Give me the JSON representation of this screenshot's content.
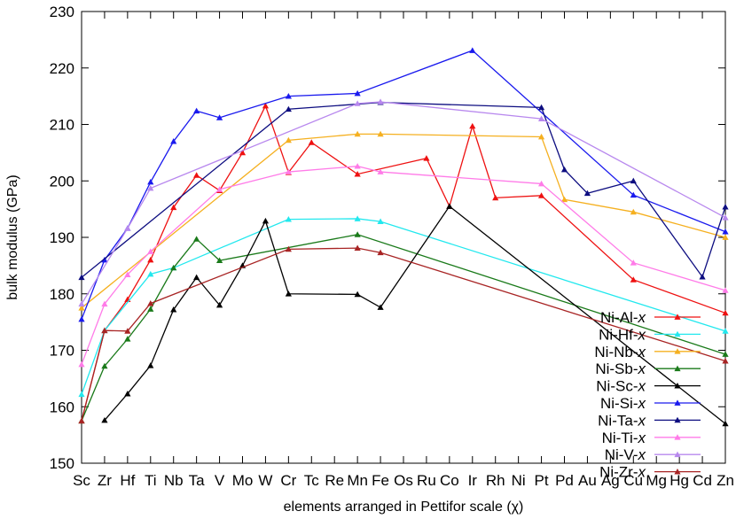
{
  "chart_data": {
    "type": "line",
    "xlabel": "elements arranged in Pettifor scale (χ)",
    "ylabel": "bulk modulus (GPa)",
    "ylim": [
      150,
      230
    ],
    "yticks": [
      150,
      160,
      170,
      180,
      190,
      200,
      210,
      220,
      230
    ],
    "categories": [
      "Sc",
      "Zr",
      "Hf",
      "Ti",
      "Nb",
      "Ta",
      "V",
      "Mo",
      "W",
      "Cr",
      "Tc",
      "Re",
      "Mn",
      "Fe",
      "Os",
      "Ru",
      "Co",
      "Ir",
      "Rh",
      "Ni",
      "Pt",
      "Pd",
      "Au",
      "Ag",
      "Cu",
      "Mg",
      "Hg",
      "Cd",
      "Zn"
    ],
    "legend_position": "center-right",
    "grid": false,
    "series": [
      {
        "name": "Ni-Al-x",
        "color": "#ee1111",
        "marker": "triangle",
        "points": [
          [
            "Sc",
            157.5
          ],
          [
            "Zr",
            173.5
          ],
          [
            "Hf",
            179.0
          ],
          [
            "Ti",
            186.0
          ],
          [
            "Nb",
            195.3
          ],
          [
            "Ta",
            201.0
          ],
          [
            "V",
            198.3
          ],
          [
            "Mo",
            205.0
          ],
          [
            "W",
            213.3
          ],
          [
            "Cr",
            201.5
          ],
          [
            "Tc",
            206.8
          ],
          [
            "Mn",
            201.2
          ],
          [
            "Ru",
            204.0
          ],
          [
            "Co",
            195.5
          ],
          [
            "Ir",
            209.7
          ],
          [
            "Rh",
            197.0
          ],
          [
            "Pt",
            197.4
          ],
          [
            "Cu",
            182.5
          ],
          [
            "Zn",
            176.6
          ]
        ]
      },
      {
        "name": "Ni-Hf-x",
        "color": "#22e8ee",
        "marker": "triangle",
        "points": [
          [
            "Sc",
            162.2
          ],
          [
            "Zr",
            173.5
          ],
          [
            "Ti",
            183.5
          ],
          [
            "Nb",
            184.6
          ],
          [
            "Cr",
            193.2
          ],
          [
            "Mn",
            193.3
          ],
          [
            "Fe",
            192.8
          ],
          [
            "Zn",
            173.4
          ]
        ]
      },
      {
        "name": "Ni-Nb-x",
        "color": "#f5b020",
        "marker": "triangle",
        "points": [
          [
            "Sc",
            177.5
          ],
          [
            "Cr",
            207.2
          ],
          [
            "Mn",
            208.3
          ],
          [
            "Fe",
            208.3
          ],
          [
            "Pt",
            207.8
          ],
          [
            "Pd",
            196.7
          ],
          [
            "Cu",
            194.5
          ],
          [
            "Zn",
            190.0
          ]
        ]
      },
      {
        "name": "Ni-Sb-x",
        "color": "#1a7a1a",
        "marker": "triangle",
        "points": [
          [
            "Sc",
            157.5
          ],
          [
            "Zr",
            167.2
          ],
          [
            "Hf",
            172.0
          ],
          [
            "Ti",
            177.3
          ],
          [
            "Nb",
            184.6
          ],
          [
            "Ta",
            189.7
          ],
          [
            "V",
            185.9
          ],
          [
            "Mn",
            190.5
          ],
          [
            "Zn",
            169.3
          ]
        ]
      },
      {
        "name": "Ni-Sc-x",
        "color": "#000000",
        "marker": "triangle",
        "points": [
          [
            "Zr",
            157.6
          ],
          [
            "Hf",
            162.3
          ],
          [
            "Ti",
            167.3
          ],
          [
            "Nb",
            177.2
          ],
          [
            "Ta",
            182.9
          ],
          [
            "V",
            178.0
          ],
          [
            "Mo",
            185.0
          ],
          [
            "W",
            192.9
          ],
          [
            "Cr",
            180.0
          ],
          [
            "Mn",
            179.9
          ],
          [
            "Fe",
            177.6
          ],
          [
            "Co",
            195.5
          ],
          [
            "Zn",
            157.0
          ]
        ]
      },
      {
        "name": "Ni-Si-x",
        "color": "#1a1aee",
        "marker": "triangle",
        "points": [
          [
            "Sc",
            175.5
          ],
          [
            "Zr",
            186.0
          ],
          [
            "Hf",
            191.6
          ],
          [
            "Ti",
            199.8
          ],
          [
            "Nb",
            207.0
          ],
          [
            "Ta",
            212.4
          ],
          [
            "V",
            211.2
          ],
          [
            "Cr",
            215.0
          ],
          [
            "Mn",
            215.5
          ],
          [
            "Ir",
            223.1
          ],
          [
            "Cu",
            197.5
          ],
          [
            "Zn",
            191.0
          ]
        ]
      },
      {
        "name": "Ni-Ta-x",
        "color": "#0d0d80",
        "marker": "triangle",
        "points": [
          [
            "Sc",
            182.9
          ],
          [
            "Cr",
            212.7
          ],
          [
            "Fe",
            213.9
          ],
          [
            "Pt",
            213.0
          ],
          [
            "Pd",
            202.0
          ],
          [
            "Au",
            197.8
          ],
          [
            "Cu",
            200.0
          ],
          [
            "Cd",
            183.0
          ],
          [
            "Zn",
            195.4
          ]
        ]
      },
      {
        "name": "Ni-Ti-x",
        "color": "#ff7be8",
        "marker": "triangle",
        "points": [
          [
            "Sc",
            167.5
          ],
          [
            "Zr",
            178.2
          ],
          [
            "Hf",
            183.4
          ],
          [
            "Ti",
            187.5
          ],
          [
            "V",
            198.5
          ],
          [
            "Cr",
            201.6
          ],
          [
            "Mn",
            202.6
          ],
          [
            "Fe",
            201.6
          ],
          [
            "Pt",
            199.5
          ],
          [
            "Cu",
            185.5
          ],
          [
            "Zn",
            180.6
          ]
        ]
      },
      {
        "name": "Ni-V-x",
        "color": "#b888ee",
        "marker": "triangle",
        "points": [
          [
            "Sc",
            178.2
          ],
          [
            "Hf",
            191.6
          ],
          [
            "Ti",
            198.7
          ],
          [
            "Mn",
            213.7
          ],
          [
            "Fe",
            214.0
          ],
          [
            "Pt",
            211.0
          ],
          [
            "Zn",
            193.5
          ]
        ]
      },
      {
        "name": "Ni-Zr-x",
        "color": "#a82424",
        "marker": "triangle",
        "points": [
          [
            "Sc",
            157.5
          ],
          [
            "Zr",
            173.5
          ],
          [
            "Hf",
            173.4
          ],
          [
            "Ti",
            178.3
          ],
          [
            "Cr",
            187.9
          ],
          [
            "Mn",
            188.1
          ],
          [
            "Fe",
            187.3
          ],
          [
            "Zn",
            168.1
          ]
        ]
      }
    ]
  }
}
